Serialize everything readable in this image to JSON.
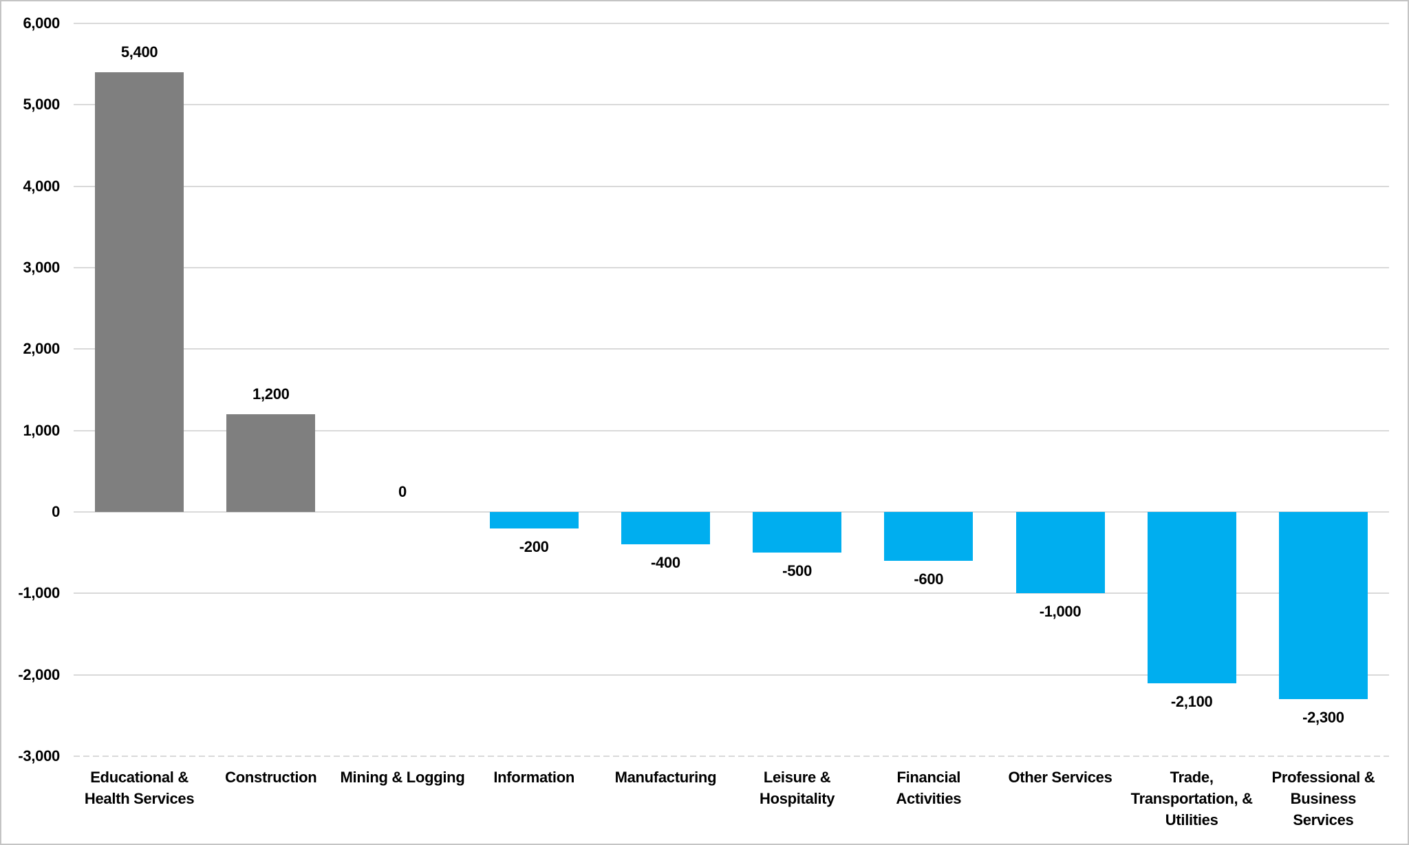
{
  "chart_data": {
    "type": "bar",
    "categories": [
      "Educational & Health Services",
      "Construction",
      "Mining & Logging",
      "Information",
      "Manufacturing",
      "Leisure & Hospitality",
      "Financial Activities",
      "Other Services",
      "Trade, Transportation, & Utilities",
      "Professional & Business Services"
    ],
    "category_labels": [
      "Educational &\nHealth Services",
      "Construction",
      "Mining & Logging",
      "Information",
      "Manufacturing",
      "Leisure &\nHospitality",
      "Financial\nActivities",
      "Other Services",
      "Trade,\nTransportation, &\nUtilities",
      "Professional &\nBusiness\nServices"
    ],
    "values": [
      5400,
      1200,
      0,
      -200,
      -400,
      -500,
      -600,
      -1000,
      -2100,
      -2300
    ],
    "value_labels": [
      "5,400",
      "1,200",
      "0",
      "-200",
      "-400",
      "-500",
      "-600",
      "-1,000",
      "-2,100",
      "-2,300"
    ],
    "bar_colors": [
      "#7F7F7F",
      "#7F7F7F",
      "#7F7F7F",
      "#00AEEF",
      "#00AEEF",
      "#00AEEF",
      "#00AEEF",
      "#00AEEF",
      "#00AEEF",
      "#00AEEF"
    ],
    "positive_color": "#7F7F7F",
    "negative_color": "#00AEEF",
    "xlabel": "",
    "ylabel": "",
    "ylim": [
      -3000,
      6000
    ],
    "ytick_interval": 1000,
    "yticks": [
      6000,
      5000,
      4000,
      3000,
      2000,
      1000,
      0,
      -1000,
      -2000,
      -3000
    ],
    "ytick_labels": [
      "6,000",
      "5,000",
      "4,000",
      "3,000",
      "2,000",
      "1,000",
      "0",
      "-1,000",
      "-2,000",
      "-3,000"
    ],
    "grid": "horizontal",
    "gridline_color": "#D9D9D9",
    "bottom_gridline_style": "dashed",
    "legend": "none",
    "background": "#FFFFFF",
    "border_color": "#C4C4C4",
    "text_color": "#000000"
  }
}
